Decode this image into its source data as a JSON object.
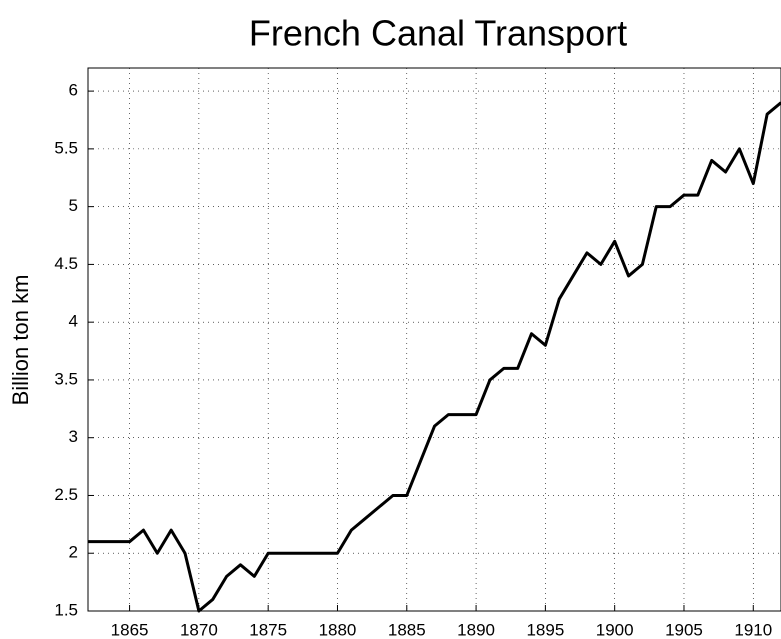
{
  "chart_data": {
    "type": "line",
    "title": "French Canal Transport",
    "y_label": "Billion ton km",
    "x": [
      1862,
      1863,
      1864,
      1865,
      1866,
      1867,
      1868,
      1869,
      1870,
      1871,
      1872,
      1873,
      1874,
      1875,
      1876,
      1877,
      1878,
      1879,
      1880,
      1881,
      1882,
      1883,
      1884,
      1885,
      1886,
      1887,
      1888,
      1889,
      1890,
      1891,
      1892,
      1893,
      1894,
      1895,
      1896,
      1897,
      1898,
      1899,
      1900,
      1901,
      1902,
      1903,
      1904,
      1905,
      1906,
      1907,
      1908,
      1909,
      1910,
      1911,
      1912
    ],
    "series": [
      {
        "name": "Billion ton km",
        "color": "#000000",
        "values": [
          2.1,
          2.1,
          2.1,
          2.1,
          2.2,
          2.0,
          2.2,
          2.0,
          1.5,
          1.6,
          1.8,
          1.9,
          1.8,
          2.0,
          2.0,
          2.0,
          2.0,
          2.0,
          2.0,
          2.2,
          2.3,
          2.4,
          2.5,
          2.5,
          2.8,
          3.1,
          3.2,
          3.2,
          3.2,
          3.5,
          3.6,
          3.6,
          3.9,
          3.8,
          4.2,
          4.4,
          4.6,
          4.5,
          4.7,
          4.4,
          4.5,
          5.0,
          5.0,
          5.1,
          5.1,
          5.4,
          5.3,
          5.5,
          5.2,
          5.8,
          5.9
        ]
      }
    ],
    "xlim": [
      1862,
      1912
    ],
    "ylim": [
      1.5,
      6.2
    ],
    "xticks": [
      1865,
      1870,
      1875,
      1880,
      1885,
      1890,
      1895,
      1900,
      1905,
      1910
    ],
    "yticks": [
      1.5,
      2,
      2.5,
      3,
      3.5,
      4,
      4.5,
      5,
      5.5,
      6
    ],
    "grid": true
  }
}
